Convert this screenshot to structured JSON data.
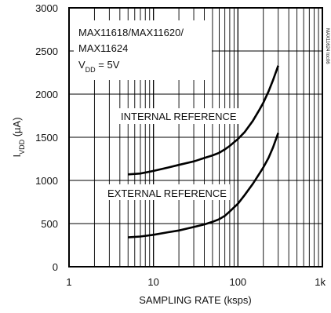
{
  "chart_data": {
    "type": "line",
    "xlabel": "SAMPLING RATE (ksps)",
    "ylabel_main": "I",
    "ylabel_sub": "VDD",
    "ylabel_unit": " (µA)",
    "x_scale": "log",
    "xlim": [
      1,
      1000
    ],
    "ylim": [
      0,
      3000
    ],
    "x_ticks": [
      1,
      10,
      100,
      1000
    ],
    "x_tick_labels": [
      "1",
      "10",
      "100",
      "1k"
    ],
    "y_ticks": [
      0,
      500,
      1000,
      1500,
      2000,
      2500,
      3000
    ],
    "y_tick_labels": [
      "0",
      "500",
      "1000",
      "1500",
      "2000",
      "2500",
      "3000"
    ],
    "grid": true,
    "legend_placement": "top-left",
    "legend_lines": [
      "MAX11618/MAX11620/",
      "MAX11624"
    ],
    "legend_vdd_main": "V",
    "legend_vdd_sub": "DD",
    "legend_vdd_value": " = 5V",
    "series_labels": [
      "INTERNAL REFERENCE",
      "EXTERNAL REFERENCE"
    ],
    "side_code": "MAX11624 toc06",
    "series": [
      {
        "x": [
          5,
          7,
          10,
          15,
          20,
          30,
          40,
          50,
          60,
          70,
          80,
          100,
          120,
          150,
          180,
          200,
          230,
          260,
          300
        ],
        "values": [
          1070,
          1080,
          1110,
          1150,
          1180,
          1220,
          1260,
          1290,
          1320,
          1360,
          1400,
          1480,
          1560,
          1690,
          1820,
          1900,
          2030,
          2160,
          2330
        ]
      },
      {
        "x": [
          5,
          7,
          10,
          15,
          20,
          30,
          40,
          50,
          60,
          70,
          80,
          100,
          120,
          150,
          180,
          200,
          230,
          260,
          300
        ],
        "values": [
          340,
          350,
          370,
          400,
          420,
          460,
          490,
          520,
          550,
          590,
          640,
          730,
          830,
          960,
          1080,
          1150,
          1260,
          1380,
          1550
        ]
      }
    ]
  }
}
